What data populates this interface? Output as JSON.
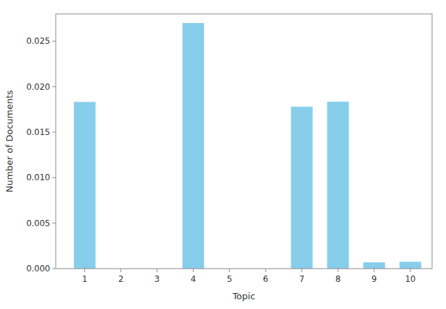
{
  "chart_data": {
    "type": "bar",
    "xlabel": "Topic",
    "ylabel": "Number of Documents",
    "x": [
      1,
      2,
      3,
      4,
      5,
      6,
      7,
      8,
      9,
      10
    ],
    "values": [
      0.01833,
      0.0,
      0.0,
      0.027,
      0.0,
      0.0,
      0.0178,
      0.01835,
      0.0007,
      0.00075
    ],
    "color": "#87CEEB",
    "xlim": [
      0.2,
      10.6
    ],
    "xticks": [
      1,
      2,
      3,
      4,
      5,
      6,
      7,
      8,
      9,
      10
    ],
    "ylim": [
      0,
      0.028
    ],
    "yticks": [
      {
        "value": 0.0,
        "label": "0.000"
      },
      {
        "value": 0.005,
        "label": "0.005"
      },
      {
        "value": 0.01,
        "label": "0.010"
      },
      {
        "value": 0.015,
        "label": "0.015"
      },
      {
        "value": 0.02,
        "label": "0.020"
      },
      {
        "value": 0.025,
        "label": "0.025"
      }
    ],
    "grid": false
  }
}
